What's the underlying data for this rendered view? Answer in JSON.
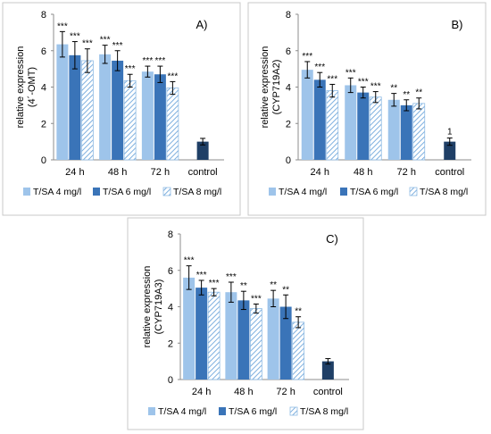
{
  "chart_data": [
    {
      "type": "bar",
      "title": "A)",
      "ylabel": "relative expression",
      "ylabel2": "(4´-OMT)",
      "xlabel": "",
      "ylim": [
        0,
        8
      ],
      "yticks": [
        0,
        2,
        4,
        6,
        8
      ],
      "categories": [
        "24  h",
        "48 h",
        "72  h"
      ],
      "control": {
        "label": "control",
        "value": 1.0,
        "error": 0.18,
        "annotation": "",
        "color": "#1f3f66"
      },
      "series": [
        {
          "name": "T/SA 4 mg/l",
          "values": [
            6.35,
            5.8,
            4.85
          ],
          "errors": [
            0.7,
            0.5,
            0.3
          ],
          "annotations": [
            "***",
            "***",
            "***"
          ],
          "color": "#9ec4ea",
          "pattern": "solid"
        },
        {
          "name": "T/SA 6 mg/l",
          "values": [
            5.75,
            5.45,
            4.7
          ],
          "errors": [
            0.75,
            0.55,
            0.45
          ],
          "annotations": [
            "***",
            "***",
            "***"
          ],
          "color": "#3a74b8",
          "pattern": "solid"
        },
        {
          "name": "T/SA 8 mg/l",
          "values": [
            5.45,
            4.35,
            3.95
          ],
          "errors": [
            0.65,
            0.35,
            0.35
          ],
          "annotations": [
            "***",
            "***",
            "***"
          ],
          "color": "#8fbbe4",
          "pattern": "hatch"
        }
      ],
      "legend": "bottom"
    },
    {
      "type": "bar",
      "title": "B)",
      "ylabel": "relative expression",
      "ylabel2": "(CYP719A2)",
      "xlabel": "",
      "ylim": [
        0,
        8
      ],
      "yticks": [
        0,
        2,
        4,
        6,
        8
      ],
      "categories": [
        "24  h",
        "48 h",
        "72  h"
      ],
      "control": {
        "label": "control",
        "value": 1.0,
        "error": 0.2,
        "annotation": "1",
        "color": "#1f3f66"
      },
      "series": [
        {
          "name": "T/SA 4 mg/l",
          "values": [
            4.95,
            4.1,
            3.3
          ],
          "errors": [
            0.45,
            0.4,
            0.35
          ],
          "annotations": [
            "***",
            "***",
            "**"
          ],
          "color": "#9ec4ea",
          "pattern": "solid"
        },
        {
          "name": "T/SA 6 mg/l",
          "values": [
            4.4,
            3.7,
            3.0
          ],
          "errors": [
            0.4,
            0.3,
            0.3
          ],
          "annotations": [
            "***",
            "***",
            "**"
          ],
          "color": "#3a74b8",
          "pattern": "solid"
        },
        {
          "name": "T/SA 8 mg/l",
          "values": [
            3.8,
            3.45,
            3.1
          ],
          "errors": [
            0.35,
            0.3,
            0.3
          ],
          "annotations": [
            "***",
            "***",
            "**"
          ],
          "color": "#8fbbe4",
          "pattern": "hatch"
        }
      ],
      "legend": "bottom"
    },
    {
      "type": "bar",
      "title": "C)",
      "ylabel": "relative expression",
      "ylabel2": "(CYP719A3)",
      "xlabel": "",
      "ylim": [
        0,
        8
      ],
      "yticks": [
        0,
        2,
        4,
        6,
        8
      ],
      "categories": [
        "24  h",
        "48 h",
        "72  h"
      ],
      "control": {
        "label": "control",
        "value": 1.0,
        "error": 0.15,
        "annotation": "",
        "color": "#1f3f66"
      },
      "series": [
        {
          "name": "T/SA 4 mg/l",
          "values": [
            5.6,
            4.8,
            4.45
          ],
          "errors": [
            0.65,
            0.55,
            0.45
          ],
          "annotations": [
            "***",
            "***",
            "**"
          ],
          "color": "#9ec4ea",
          "pattern": "solid"
        },
        {
          "name": "T/SA 6 mg/l",
          "values": [
            5.05,
            4.35,
            4.0
          ],
          "errors": [
            0.4,
            0.5,
            0.65
          ],
          "annotations": [
            "***",
            "**",
            "**"
          ],
          "color": "#3a74b8",
          "pattern": "solid"
        },
        {
          "name": "T/SA 8 mg/l",
          "values": [
            4.8,
            3.9,
            3.15
          ],
          "errors": [
            0.2,
            0.25,
            0.3
          ],
          "annotations": [
            "***",
            "***",
            "**"
          ],
          "color": "#8fbbe4",
          "pattern": "hatch"
        }
      ],
      "legend": "bottom"
    }
  ]
}
